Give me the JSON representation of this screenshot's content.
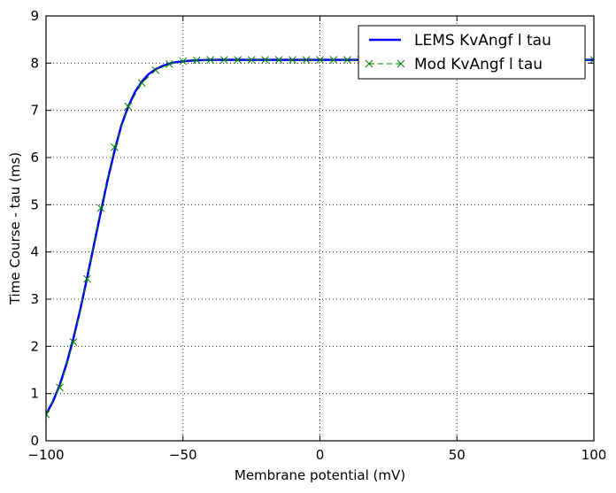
{
  "chart_data": {
    "type": "line",
    "xlabel": "Membrane potential (mV)",
    "ylabel": "Time Course - tau (ms)",
    "xlim": [
      -100,
      100
    ],
    "ylim": [
      0,
      9
    ],
    "xticks": [
      -100,
      -50,
      0,
      50,
      100
    ],
    "yticks": [
      0,
      1,
      2,
      3,
      4,
      5,
      6,
      7,
      8,
      9
    ],
    "grid": true,
    "legend_position": "top-right",
    "series": [
      {
        "name": "LEMS KvAngf l tau",
        "color": "#0000ff",
        "style": "solid",
        "x": [
          -100,
          -97.5,
          -95,
          -92.5,
          -90,
          -87.5,
          -85,
          -82.5,
          -80,
          -77.5,
          -75,
          -72.5,
          -70,
          -67.5,
          -65,
          -62.5,
          -60,
          -57.5,
          -55,
          -52.5,
          -50,
          -47.5,
          -45,
          -42.5,
          -40,
          -35,
          -30,
          -25,
          -20,
          -10,
          0,
          10,
          20,
          40,
          60,
          80,
          100
        ],
        "y": [
          0.56,
          0.83,
          1.18,
          1.63,
          2.17,
          2.78,
          3.45,
          4.15,
          4.85,
          5.53,
          6.14,
          6.68,
          7.08,
          7.39,
          7.61,
          7.77,
          7.87,
          7.94,
          7.99,
          8.02,
          8.04,
          8.05,
          8.06,
          8.065,
          8.07,
          8.07,
          8.07,
          8.07,
          8.07,
          8.07,
          8.07,
          8.07,
          8.07,
          8.07,
          8.07,
          8.07,
          8.07
        ]
      },
      {
        "name": "Mod KvAngf l tau",
        "color": "#008000",
        "style": "dashed-x",
        "x": [
          -100,
          -95,
          -90,
          -85,
          -80,
          -75,
          -70,
          -65,
          -60,
          -55,
          -50,
          -45,
          -40,
          -35,
          -30,
          -25,
          -20,
          -15,
          -10,
          -5,
          0,
          5,
          10,
          15,
          20,
          25,
          30,
          35,
          40,
          45,
          50,
          55,
          60,
          65,
          70,
          75,
          80,
          85,
          90,
          95,
          100
        ],
        "y": [
          0.56,
          1.13,
          2.09,
          3.43,
          4.93,
          6.22,
          7.08,
          7.58,
          7.85,
          7.98,
          8.04,
          8.06,
          8.07,
          8.07,
          8.07,
          8.07,
          8.07,
          8.07,
          8.07,
          8.07,
          8.07,
          8.07,
          8.07,
          8.07,
          8.07,
          8.07,
          8.07,
          8.07,
          8.07,
          8.07,
          8.07,
          8.07,
          8.07,
          8.07,
          8.07,
          8.07,
          8.07,
          8.07,
          8.07,
          8.07,
          8.07
        ]
      }
    ]
  }
}
